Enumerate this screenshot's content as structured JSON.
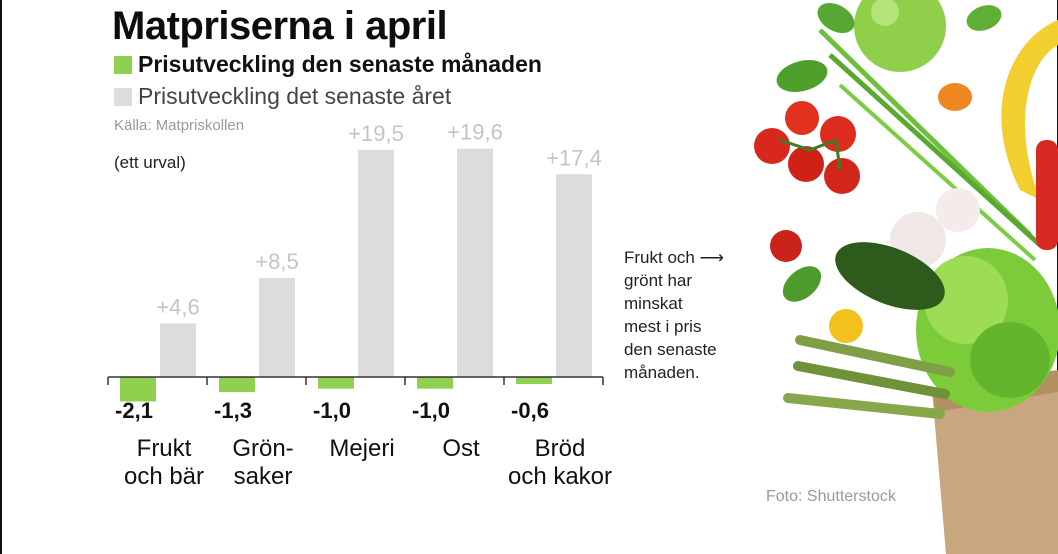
{
  "title": "Matpriserna i april",
  "legend": {
    "month_label": "Prisutveckling den senaste månaden",
    "year_label": "Prisutveckling det senaste året"
  },
  "source": "Källa: Matpriskollen",
  "selection_note": "(ett urval)",
  "annotation": "Frukt och ⟶\ngrönt har\nminskat\nmest i pris\nden senaste\nmånaden.",
  "photo_credit": "Foto: Shutterstock",
  "colors": {
    "month": "#8fd14f",
    "year": "#dcdcdc",
    "year_label": "#c4c4c4",
    "axis": "#333333"
  },
  "chart_data": {
    "type": "bar",
    "categories": [
      [
        "Frukt",
        "och bär"
      ],
      [
        "Grön-",
        "saker"
      ],
      [
        "Mejeri"
      ],
      [
        "Ost"
      ],
      [
        "Bröd",
        "och kakor"
      ]
    ],
    "series": [
      {
        "name": "Prisutveckling den senaste månaden",
        "values": [
          -2.1,
          -1.3,
          -1.0,
          -1.0,
          -0.6
        ],
        "labels": [
          "-2,1",
          "-1,3",
          "-1,0",
          "-1,0",
          "-0,6"
        ]
      },
      {
        "name": "Prisutveckling det senaste året",
        "values": [
          4.6,
          8.5,
          19.5,
          19.6,
          17.4
        ],
        "labels": [
          "+4,6",
          "+8,5",
          "+19,5",
          "+19,6",
          "+17,4"
        ]
      }
    ],
    "xlabel": "",
    "ylabel": "",
    "grid": false
  },
  "image": {
    "subject": "fresh vegetables and fruit in a paper bag"
  }
}
